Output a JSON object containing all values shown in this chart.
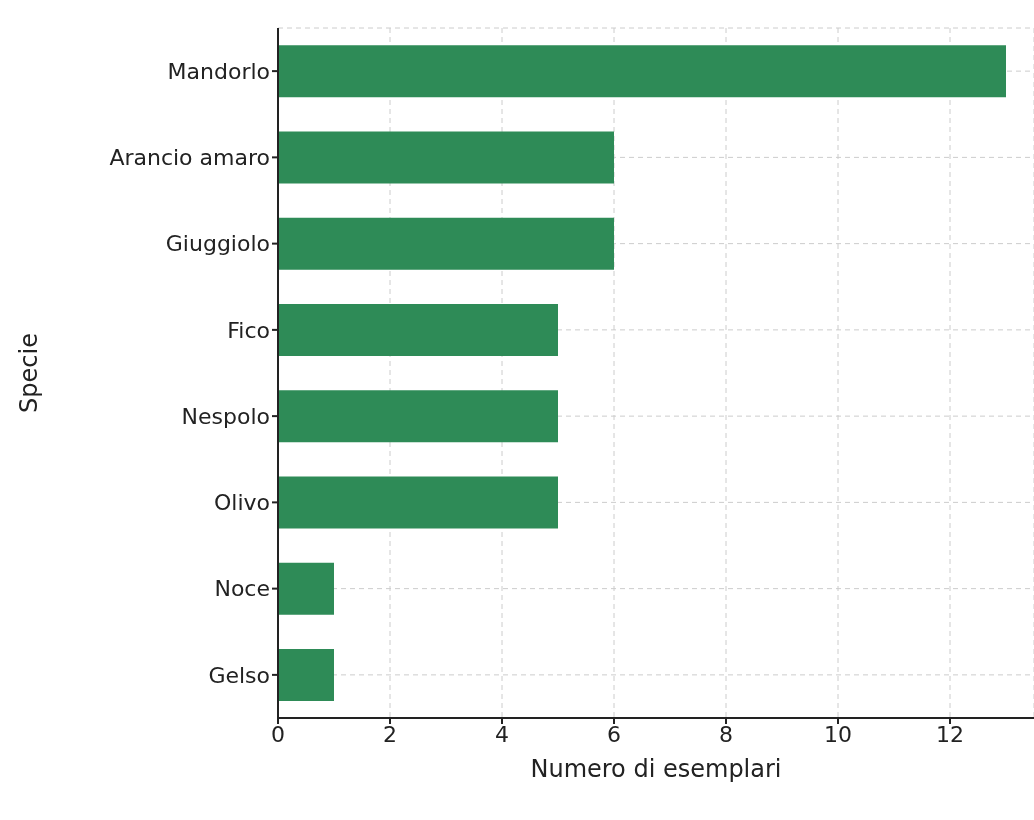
{
  "chart_data": {
    "type": "bar",
    "orientation": "horizontal",
    "categories": [
      "Mandorlo",
      "Arancio amaro",
      "Giuggiolo",
      "Fico",
      "Nespolo",
      "Olivo",
      "Noce",
      "Gelso"
    ],
    "values": [
      13,
      6,
      6,
      5,
      5,
      5,
      1,
      1
    ],
    "color": "#2e8b57",
    "xlim": [
      0,
      13.5
    ],
    "xticks": [
      0,
      2,
      4,
      6,
      8,
      10,
      12
    ],
    "xlabel": "Numero di esemplari",
    "ylabel": "Specie",
    "grid": true
  }
}
